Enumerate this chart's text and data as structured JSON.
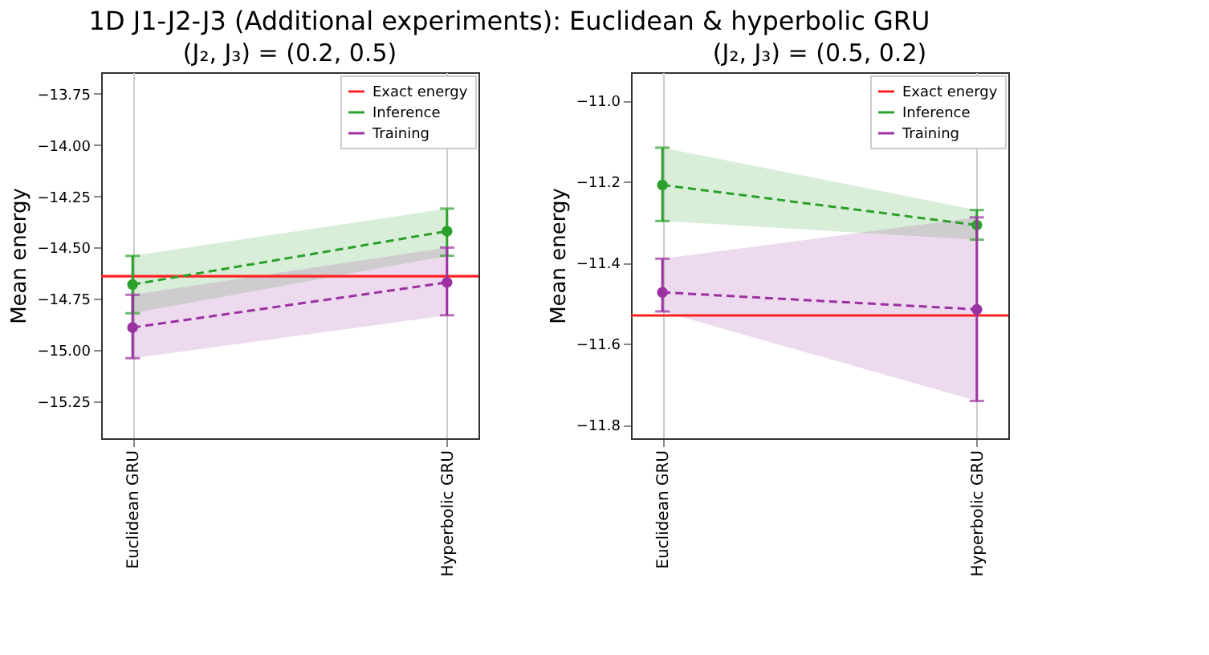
{
  "chart_data": [
    {
      "type": "line",
      "title": "1D J1-J2-J3 (Additional experiments): Euclidean & hyperbolic GRU",
      "subtitle": "(J₂, J₃) = (0.2, 0.5)",
      "ylabel": "Mean energy",
      "categories": [
        "Euclidean GRU",
        "Hyperbolic GRU"
      ],
      "series": [
        {
          "name": "Inference",
          "color": "#2ca02c",
          "values": [
            -14.68,
            -14.42
          ],
          "errors": [
            [
              -14.82,
              -14.54
            ],
            [
              -14.54,
              -14.31
            ]
          ],
          "lower": [
            -14.82,
            -14.54
          ],
          "upper": [
            -14.54,
            -14.31
          ]
        },
        {
          "name": "Training",
          "color": "#9b30a0",
          "values": [
            -14.89,
            -14.67
          ],
          "errors": [
            [
              -15.04,
              -14.73
            ],
            [
              -14.83,
              -14.5
            ]
          ],
          "lower": [
            -15.04,
            -14.83
          ],
          "upper": [
            -14.73,
            -14.5
          ]
        }
      ],
      "ref_lines": [
        {
          "axis": "y",
          "value": -14.64,
          "label": "Exact energy",
          "color": "#ff2020"
        }
      ],
      "ylim": [
        -15.43,
        -13.645
      ],
      "yticks": [
        {
          "value": -15.25,
          "label": "−15.25"
        },
        {
          "value": -15.0,
          "label": "−15.00"
        },
        {
          "value": -14.75,
          "label": "−14.75"
        },
        {
          "value": -14.5,
          "label": "−14.50"
        },
        {
          "value": -14.25,
          "label": "−14.25"
        },
        {
          "value": -14.0,
          "label": "−14.00"
        },
        {
          "value": -13.75,
          "label": "−13.75"
        }
      ],
      "grid": "x",
      "legend": "top right",
      "marker": "circle",
      "line_style": "dashed"
    },
    {
      "type": "line",
      "subtitle": "(J₂, J₃) = (0.5, 0.2)",
      "ylabel": "Mean energy",
      "categories": [
        "Euclidean GRU",
        "Hyperbolic GRU"
      ],
      "series": [
        {
          "name": "Inference",
          "color": "#2ca02c",
          "values": [
            -11.208,
            -11.307
          ],
          "errors": [
            [
              -11.297,
              -11.116
            ],
            [
              -11.343,
              -11.27
            ]
          ],
          "lower": [
            -11.297,
            -11.343
          ],
          "upper": [
            -11.116,
            -11.27
          ]
        },
        {
          "name": "Training",
          "color": "#9b30a0",
          "values": [
            -11.473,
            -11.515
          ],
          "errors": [
            [
              -11.52,
              -11.39
            ],
            [
              -11.741,
              -11.288
            ]
          ],
          "lower": [
            -11.52,
            -11.741
          ],
          "upper": [
            -11.39,
            -11.288
          ]
        }
      ],
      "ref_lines": [
        {
          "axis": "y",
          "value": -11.53,
          "label": "Exact energy",
          "color": "#ff2020"
        }
      ],
      "ylim": [
        -11.833,
        -10.93
      ],
      "yticks": [
        {
          "value": -11.8,
          "label": "−11.8"
        },
        {
          "value": -11.6,
          "label": "−11.6"
        },
        {
          "value": -11.4,
          "label": "−11.4"
        },
        {
          "value": -11.2,
          "label": "−11.2"
        },
        {
          "value": -11.0,
          "label": "−11.0"
        }
      ],
      "grid": "x",
      "legend": "top right",
      "marker": "circle",
      "line_style": "dashed"
    }
  ]
}
